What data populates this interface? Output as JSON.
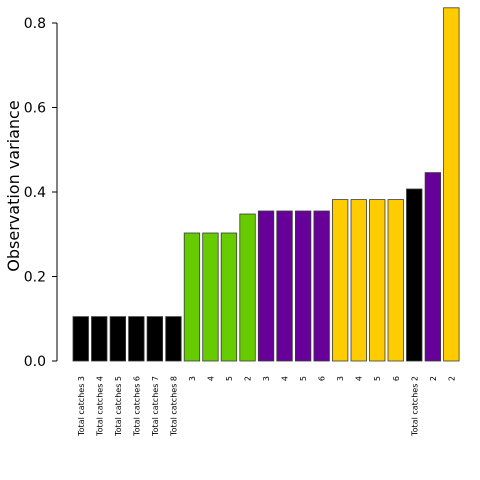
{
  "chart_data": {
    "type": "bar",
    "ylabel": "Observation variance",
    "xlabel": "",
    "ylim": [
      0,
      0.8
    ],
    "yticks": [
      "0.0",
      "0.2",
      "0.4",
      "0.6",
      "0.8"
    ],
    "grid": false,
    "categories": [
      "Total catches 3",
      "Total catches 4",
      "Total catches 5",
      "Total catches 6",
      "Total catches 7",
      "Total catches 8",
      "3",
      "4",
      "5",
      "2",
      "3",
      "4",
      "5",
      "6",
      "3",
      "4",
      "5",
      "6",
      "Total catches 2",
      "2",
      "2"
    ],
    "values": [
      0.105,
      0.105,
      0.105,
      0.105,
      0.105,
      0.105,
      0.303,
      0.303,
      0.303,
      0.348,
      0.355,
      0.355,
      0.355,
      0.355,
      0.382,
      0.382,
      0.382,
      0.382,
      0.407,
      0.446,
      0.836
    ],
    "bar_colors": [
      "#000000",
      "#000000",
      "#000000",
      "#000000",
      "#000000",
      "#000000",
      "#66cc00",
      "#66cc00",
      "#66cc00",
      "#66cc00",
      "#660099",
      "#660099",
      "#660099",
      "#660099",
      "#ffcc00",
      "#ffcc00",
      "#ffcc00",
      "#ffcc00",
      "#000000",
      "#660099",
      "#ffcc00"
    ]
  }
}
